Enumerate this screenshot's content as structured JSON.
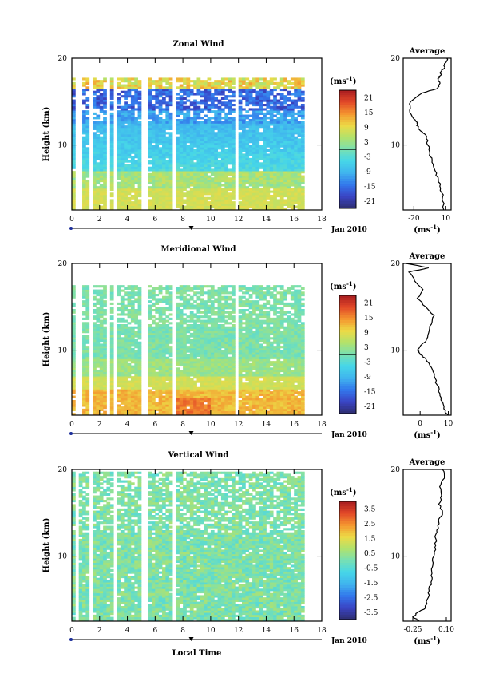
{
  "chart_data": [
    {
      "type": "heatmap",
      "title": "Zonal Wind",
      "ylabel": "Height (km)",
      "xlabel": "",
      "date_label": "Jan 2010",
      "unit_label": "(ms",
      "unit_exp": "-1",
      "unit_close": ")",
      "xlim": [
        0,
        18
      ],
      "ylim": [
        2.5,
        20
      ],
      "x_ticks": [
        0,
        2,
        4,
        6,
        8,
        10,
        12,
        14,
        16,
        18
      ],
      "y_ticks": [
        10,
        20
      ],
      "colorbar": {
        "min": -24,
        "max": 24,
        "ticks": [
          "21",
          "15",
          "9",
          "3",
          "-3",
          "-9",
          "-15",
          "-21"
        ],
        "zero_line": true
      },
      "profile": {
        "title": "Average",
        "x_ticks": [
          "-20",
          "10"
        ],
        "xlim": [
          -30,
          15
        ],
        "height": [
          2.5,
          4,
          5,
          6,
          7,
          8,
          9,
          10,
          11,
          11.5,
          12,
          12.5,
          13,
          14,
          15,
          16,
          16.5,
          17,
          17.5,
          18,
          18.5,
          19,
          19.5,
          20
        ],
        "value": [
          8,
          7,
          5,
          3,
          0,
          -3,
          -5,
          -7,
          -8,
          -12,
          -16,
          -17,
          -20,
          -24,
          -23,
          -12,
          2,
          4,
          3,
          5,
          6,
          9,
          10,
          11
        ]
      }
    },
    {
      "type": "heatmap",
      "title": "Meridional Wind",
      "ylabel": "Height (km)",
      "xlabel": "",
      "date_label": "Jan 2010",
      "unit_label": "(ms",
      "unit_exp": "-1",
      "unit_close": ")",
      "xlim": [
        0,
        18
      ],
      "ylim": [
        2.5,
        20
      ],
      "x_ticks": [
        0,
        2,
        4,
        6,
        8,
        10,
        12,
        14,
        16,
        18
      ],
      "y_ticks": [
        10,
        20
      ],
      "colorbar": {
        "min": -24,
        "max": 24,
        "ticks": [
          "21",
          "15",
          "9",
          "3",
          "-3",
          "-9",
          "-15",
          "-21"
        ],
        "zero_line": true
      },
      "profile": {
        "title": "Average",
        "x_ticks": [
          "0",
          "10"
        ],
        "xlim": [
          -6,
          11
        ],
        "height": [
          2.5,
          3,
          4,
          5,
          6,
          7,
          8,
          9,
          9.5,
          10,
          11,
          12,
          13,
          14,
          15,
          16,
          17,
          18,
          19,
          19.5,
          20
        ],
        "value": [
          10,
          9,
          8,
          7,
          6,
          5,
          4,
          2,
          0,
          -1,
          2,
          3,
          4,
          5,
          2,
          -1,
          1,
          -2,
          -4,
          3,
          -5
        ]
      }
    },
    {
      "type": "heatmap",
      "title": "Vertical Wind",
      "ylabel": "Height (km)",
      "xlabel": "Local Time",
      "date_label": "Jan 2010",
      "unit_label": "(ms",
      "unit_exp": "-1",
      "unit_close": ")",
      "xlim": [
        0,
        18
      ],
      "ylim": [
        2.5,
        20
      ],
      "x_ticks": [
        0,
        2,
        4,
        6,
        8,
        10,
        12,
        14,
        16,
        18
      ],
      "y_ticks": [
        10,
        20
      ],
      "colorbar": {
        "min": -4,
        "max": 4,
        "ticks": [
          "3.5",
          "2.5",
          "1.5",
          "0.5",
          "-0.5",
          "-1.5",
          "-2.5",
          "-3.5"
        ],
        "zero_line": false
      },
      "profile": {
        "title": "Average",
        "x_ticks": [
          "-0.25",
          "0.10"
        ],
        "xlim": [
          -0.35,
          0.15
        ],
        "height": [
          2.5,
          3,
          3.5,
          4,
          5,
          6,
          7,
          8,
          9,
          10,
          11,
          12,
          13,
          14,
          15,
          16,
          17,
          18,
          19,
          20
        ],
        "value": [
          -0.18,
          -0.25,
          -0.2,
          -0.12,
          -0.1,
          -0.08,
          -0.06,
          -0.05,
          -0.04,
          -0.03,
          -0.02,
          -0.01,
          0.0,
          0.02,
          0.06,
          0.02,
          0.05,
          0.03,
          0.08,
          0.06
        ]
      }
    }
  ]
}
